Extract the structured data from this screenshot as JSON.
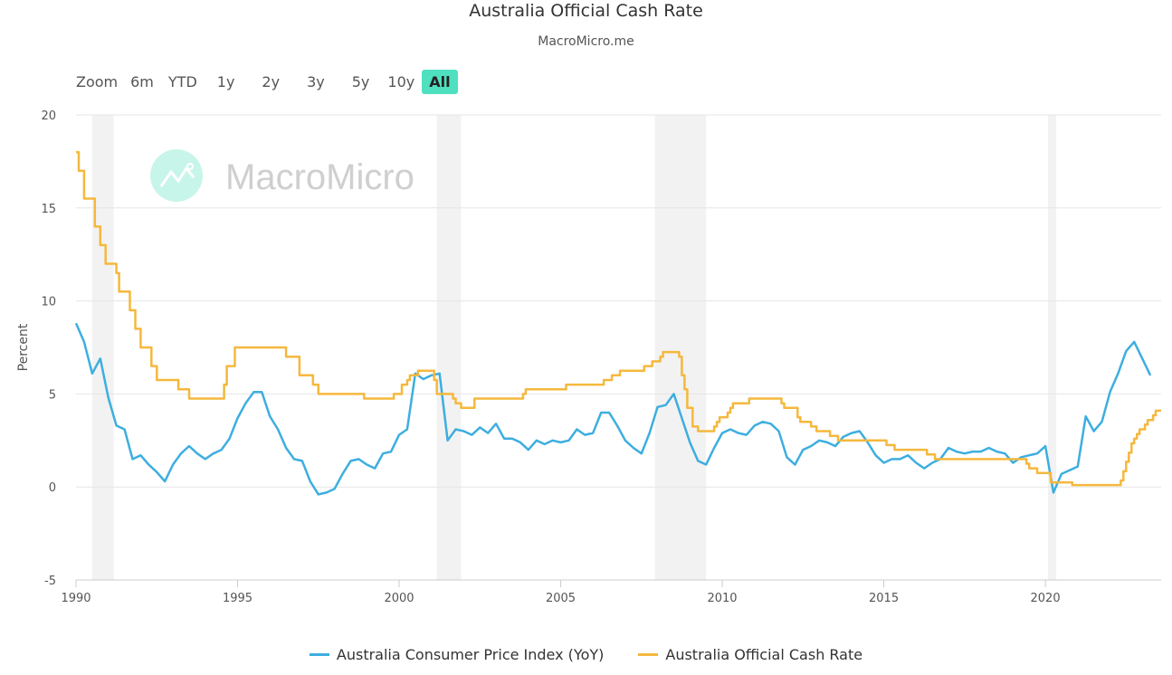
{
  "title": "Australia Official Cash Rate",
  "subtitle": "MacroMicro.me",
  "range_selector": {
    "label": "Zoom",
    "buttons": [
      "6m",
      "YTD",
      "1y",
      "2y",
      "3y",
      "5y",
      "10y",
      "All"
    ],
    "selected": "All",
    "active_color": "#4fe0c0"
  },
  "watermark": {
    "text": "MacroMicro",
    "icon": "chart-line-icon"
  },
  "chart_data": {
    "type": "line",
    "title": "Australia Official Cash Rate",
    "subtitle": "MacroMicro.me",
    "ylabel": "Percent",
    "xlabel": "",
    "xlim": [
      "1990-01",
      "2023-08"
    ],
    "ylim": [
      -5,
      20
    ],
    "yticks": [
      "-5",
      "0",
      "5",
      "10",
      "15",
      "20"
    ],
    "xticks": [
      "1990",
      "1995",
      "2000",
      "2005",
      "2010",
      "2015",
      "2020"
    ],
    "grid": true,
    "legend_position": "bottom",
    "shaded_periods": [
      [
        "1990-07",
        "1991-03"
      ],
      [
        "2001-03",
        "2001-12"
      ],
      [
        "2007-12",
        "2009-07"
      ],
      [
        "2020-02",
        "2020-05"
      ]
    ],
    "series": [
      {
        "name": "Australia Consumer Price Index (YoY)",
        "color": "#3daee0",
        "frequency": "quarterly",
        "start": "1990-01",
        "values": [
          8.8,
          7.8,
          6.1,
          6.9,
          4.8,
          3.3,
          3.1,
          1.5,
          1.7,
          1.2,
          0.8,
          0.3,
          1.2,
          1.8,
          2.2,
          1.8,
          1.5,
          1.8,
          2.0,
          2.6,
          3.7,
          4.5,
          5.1,
          5.1,
          3.8,
          3.1,
          2.1,
          1.5,
          1.4,
          0.3,
          -0.4,
          -0.3,
          -0.1,
          0.7,
          1.4,
          1.5,
          1.2,
          1.0,
          1.8,
          1.9,
          2.8,
          3.1,
          6.1,
          5.8,
          6.0,
          6.1,
          2.5,
          3.1,
          3.0,
          2.8,
          3.2,
          2.9,
          3.4,
          2.6,
          2.6,
          2.4,
          2.0,
          2.5,
          2.3,
          2.5,
          2.4,
          2.5,
          3.1,
          2.8,
          2.9,
          4.0,
          4.0,
          3.3,
          2.5,
          2.1,
          1.8,
          2.9,
          4.3,
          4.4,
          5.0,
          3.7,
          2.4,
          1.4,
          1.2,
          2.1,
          2.9,
          3.1,
          2.9,
          2.8,
          3.3,
          3.5,
          3.4,
          3.0,
          1.6,
          1.2,
          2.0,
          2.2,
          2.5,
          2.4,
          2.2,
          2.7,
          2.9,
          3.0,
          2.4,
          1.7,
          1.3,
          1.5,
          1.5,
          1.7,
          1.3,
          1.0,
          1.3,
          1.5,
          2.1,
          1.9,
          1.8,
          1.9,
          1.9,
          2.1,
          1.9,
          1.8,
          1.3,
          1.6,
          1.7,
          1.8,
          2.2,
          -0.3,
          0.7,
          0.9,
          1.1,
          3.8,
          3.0,
          3.5,
          5.1,
          6.1,
          7.3,
          7.8,
          6.9,
          6.0
        ]
      },
      {
        "name": "Australia Official Cash Rate",
        "color": "#f5b83d",
        "step": true,
        "points": [
          [
            "1990-01",
            18.0
          ],
          [
            "1990-02",
            17.0
          ],
          [
            "1990-04",
            15.5
          ],
          [
            "1990-08",
            14.0
          ],
          [
            "1990-10",
            13.0
          ],
          [
            "1990-12",
            12.0
          ],
          [
            "1991-04",
            11.5
          ],
          [
            "1991-05",
            10.5
          ],
          [
            "1991-09",
            9.5
          ],
          [
            "1991-11",
            8.5
          ],
          [
            "1992-01",
            7.5
          ],
          [
            "1992-05",
            6.5
          ],
          [
            "1992-07",
            5.75
          ],
          [
            "1993-03",
            5.25
          ],
          [
            "1993-07",
            4.75
          ],
          [
            "1994-08",
            5.5
          ],
          [
            "1994-09",
            6.5
          ],
          [
            "1994-12",
            7.5
          ],
          [
            "1996-07",
            7.0
          ],
          [
            "1996-12",
            6.0
          ],
          [
            "1997-05",
            5.5
          ],
          [
            "1997-07",
            5.0
          ],
          [
            "1998-12",
            4.75
          ],
          [
            "1999-11",
            5.0
          ],
          [
            "2000-02",
            5.5
          ],
          [
            "2000-04",
            5.75
          ],
          [
            "2000-05",
            6.0
          ],
          [
            "2000-08",
            6.25
          ],
          [
            "2001-02",
            5.75
          ],
          [
            "2001-03",
            5.0
          ],
          [
            "2001-09",
            4.75
          ],
          [
            "2001-10",
            4.5
          ],
          [
            "2001-12",
            4.25
          ],
          [
            "2002-05",
            4.75
          ],
          [
            "2003-11",
            5.0
          ],
          [
            "2003-12",
            5.25
          ],
          [
            "2005-03",
            5.5
          ],
          [
            "2006-05",
            5.75
          ],
          [
            "2006-08",
            6.0
          ],
          [
            "2006-11",
            6.25
          ],
          [
            "2007-08",
            6.5
          ],
          [
            "2007-11",
            6.75
          ],
          [
            "2008-02",
            7.0
          ],
          [
            "2008-03",
            7.25
          ],
          [
            "2008-09",
            7.0
          ],
          [
            "2008-10",
            6.0
          ],
          [
            "2008-11",
            5.25
          ],
          [
            "2008-12",
            4.25
          ],
          [
            "2009-02",
            3.25
          ],
          [
            "2009-04",
            3.0
          ],
          [
            "2009-10",
            3.25
          ],
          [
            "2009-11",
            3.5
          ],
          [
            "2009-12",
            3.75
          ],
          [
            "2010-03",
            4.0
          ],
          [
            "2010-04",
            4.25
          ],
          [
            "2010-05",
            4.5
          ],
          [
            "2010-11",
            4.75
          ],
          [
            "2011-11",
            4.5
          ],
          [
            "2011-12",
            4.25
          ],
          [
            "2012-05",
            3.75
          ],
          [
            "2012-06",
            3.5
          ],
          [
            "2012-10",
            3.25
          ],
          [
            "2012-12",
            3.0
          ],
          [
            "2013-05",
            2.75
          ],
          [
            "2013-08",
            2.5
          ],
          [
            "2015-02",
            2.25
          ],
          [
            "2015-05",
            2.0
          ],
          [
            "2016-05",
            1.75
          ],
          [
            "2016-08",
            1.5
          ],
          [
            "2019-06",
            1.25
          ],
          [
            "2019-07",
            1.0
          ],
          [
            "2019-10",
            0.75
          ],
          [
            "2020-03",
            0.25
          ],
          [
            "2020-11",
            0.1
          ],
          [
            "2022-05",
            0.35
          ],
          [
            "2022-06",
            0.85
          ],
          [
            "2022-07",
            1.35
          ],
          [
            "2022-08",
            1.85
          ],
          [
            "2022-09",
            2.35
          ],
          [
            "2022-10",
            2.6
          ],
          [
            "2022-11",
            2.85
          ],
          [
            "2022-12",
            3.1
          ],
          [
            "2023-02",
            3.35
          ],
          [
            "2023-03",
            3.6
          ],
          [
            "2023-05",
            3.85
          ],
          [
            "2023-06",
            4.1
          ],
          [
            "2023-08",
            4.1
          ]
        ]
      }
    ]
  }
}
